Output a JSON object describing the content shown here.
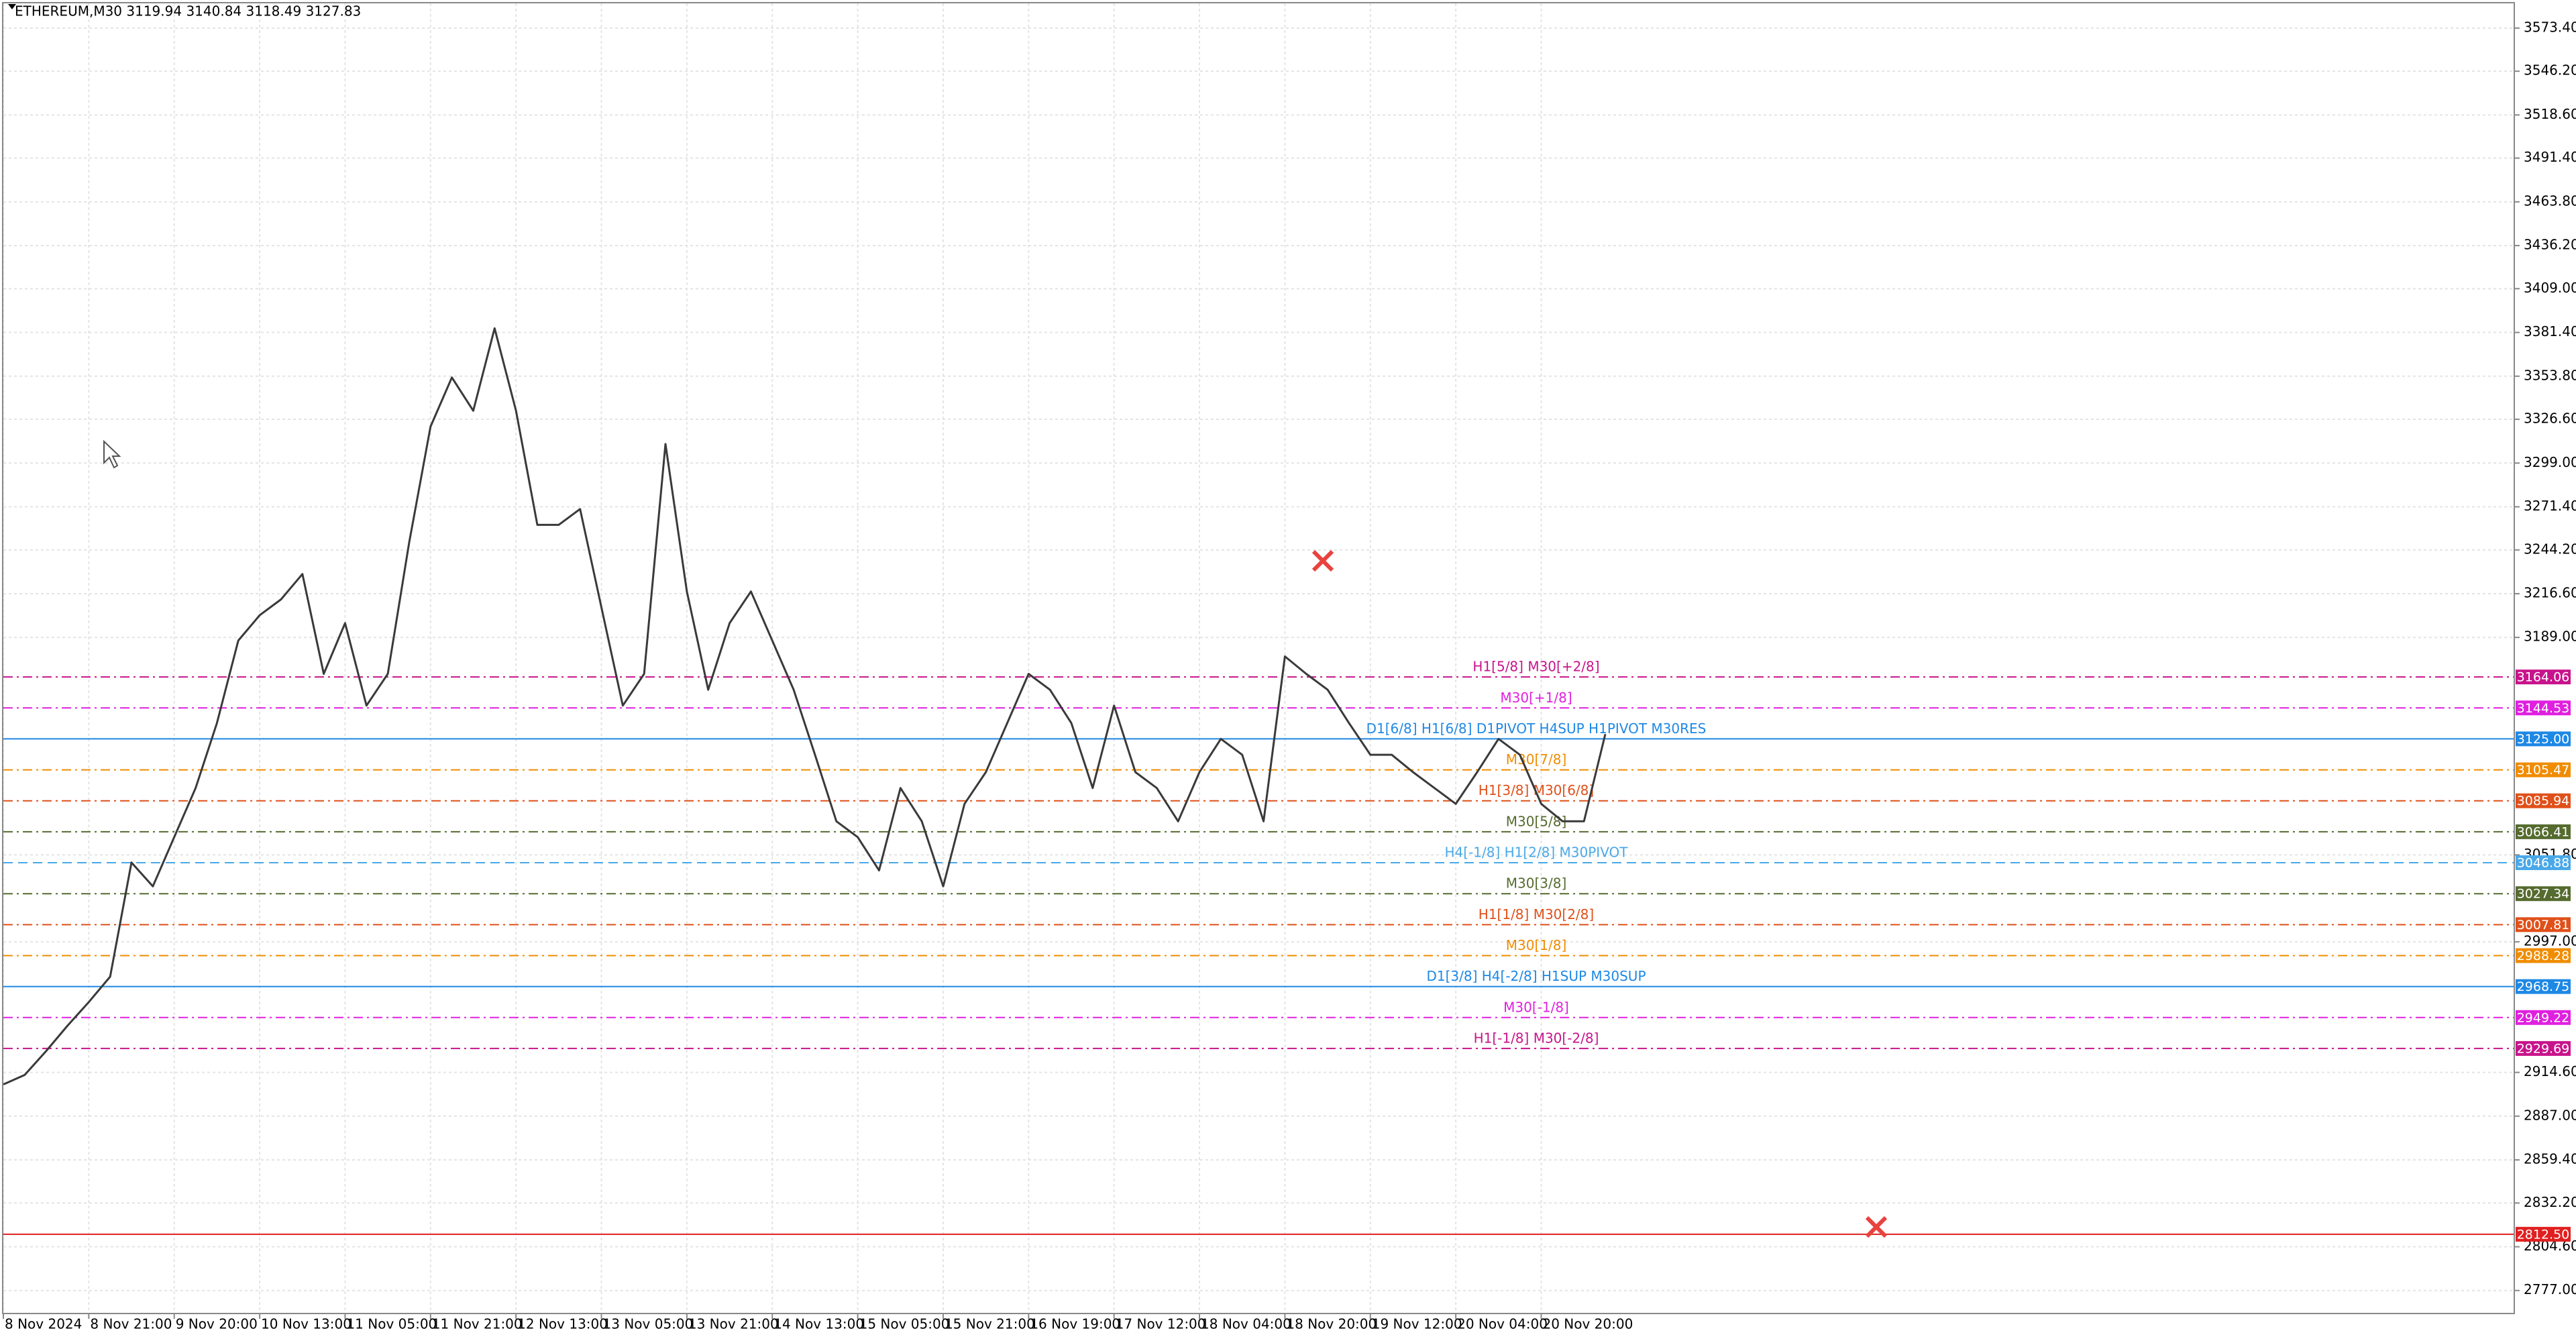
{
  "chart_data": {
    "type": "line",
    "title": "ETHEREUM,M30  3119.94 3140.84 3118.49 3127.83",
    "categories": [
      "8 Nov 2024",
      null,
      null,
      null,
      "8 Nov 21:00",
      null,
      null,
      null,
      "9 Nov 20:00",
      null,
      null,
      null,
      "10 Nov 13:00",
      null,
      null,
      null,
      "11 Nov 05:00",
      null,
      null,
      null,
      "11 Nov 21:00",
      null,
      null,
      null,
      "12 Nov 13:00",
      null,
      null,
      null,
      "13 Nov 05:00",
      null,
      null,
      null,
      "13 Nov 21:00",
      null,
      null,
      null,
      "14 Nov 13:00",
      null,
      null,
      null,
      "15 Nov 05:00",
      null,
      null,
      null,
      "15 Nov 21:00",
      null,
      null,
      null,
      "16 Nov 19:00",
      null,
      null,
      null,
      "17 Nov 12:00",
      null,
      null,
      null,
      "18 Nov 04:00",
      null,
      null,
      null,
      "18 Nov 20:00",
      null,
      null,
      null,
      "19 Nov 12:00",
      null,
      null,
      null,
      "20 Nov 04:00",
      null,
      null,
      null,
      "20 Nov 20:00",
      null,
      null,
      null
    ],
    "series": [
      {
        "name": "ETHEREUM",
        "color": "#3a3a3a",
        "values": [
          2907,
          2913,
          2928,
          2944,
          2959,
          2975,
          3047,
          3032,
          3063,
          3094,
          3135,
          3187,
          3203,
          3213,
          3229,
          3166,
          3198,
          3146,
          3166,
          3249,
          3322,
          3353,
          3332,
          3384,
          3332,
          3260,
          3260,
          3270,
          3208,
          3146,
          3166,
          3311,
          3218,
          3156,
          3198,
          3218,
          3187,
          3156,
          3115,
          3073,
          3063,
          3042,
          3094,
          3073,
          3032,
          3084,
          3104,
          3135,
          3166,
          3156,
          3135,
          3094,
          3146,
          3104,
          3094,
          3073,
          3104,
          3125,
          3115,
          3073,
          3177,
          3166,
          3156,
          3135,
          3115,
          3115,
          3104,
          3094,
          3084,
          3104,
          3125,
          3115,
          3084,
          3073,
          3073,
          3128
        ]
      }
    ],
    "ylim": [
      2762.5,
      3589
    ],
    "yticks": [
      {
        "value": 3573.4,
        "label": "3573.40"
      },
      {
        "value": 3546.2,
        "label": "3546.20"
      },
      {
        "value": 3518.6,
        "label": "3518.60"
      },
      {
        "value": 3491.4,
        "label": "3491.40"
      },
      {
        "value": 3463.8,
        "label": "3463.80"
      },
      {
        "value": 3436.2,
        "label": "3436.20"
      },
      {
        "value": 3409,
        "label": "3409.00"
      },
      {
        "value": 3381.4,
        "label": "3381.40"
      },
      {
        "value": 3353.8,
        "label": "3353.80"
      },
      {
        "value": 3326.6,
        "label": "3326.60"
      },
      {
        "value": 3299,
        "label": "3299.00"
      },
      {
        "value": 3271.4,
        "label": "3271.40"
      },
      {
        "value": 3244.2,
        "label": "3244.20"
      },
      {
        "value": 3216.6,
        "label": "3216.60"
      },
      {
        "value": 3189,
        "label": "3189.00"
      },
      {
        "value": 3051.8,
        "label": "3051.80"
      },
      {
        "value": 2997,
        "label": "2997.00"
      },
      {
        "value": 2914.6,
        "label": "2914.60"
      },
      {
        "value": 2887,
        "label": "2887.00"
      },
      {
        "value": 2859.4,
        "label": "2859.40"
      },
      {
        "value": 2832.2,
        "label": "2832.20"
      },
      {
        "value": 2804.6,
        "label": "2804.60"
      },
      {
        "value": 2777,
        "label": "2777.00"
      }
    ],
    "grid": true,
    "levels": [
      {
        "value": 3164.06,
        "tag": "3164.06",
        "label": "H1[5/8] M30[+2/8]",
        "color": "#c8148c",
        "style": "dashdot"
      },
      {
        "value": 3144.53,
        "tag": "3144.53",
        "label": "M30[+1/8]",
        "color": "#e020e0",
        "style": "dashdot"
      },
      {
        "value": 3125,
        "tag": "3125.00",
        "label": "D1[6/8] H1[6/8] D1PIVOT H4SUP H1PIVOT M30RES",
        "color": "#1e88e5",
        "style": "solid"
      },
      {
        "value": 3105.47,
        "tag": "3105.47",
        "label": "M30[7/8]",
        "color": "#f08c00",
        "style": "dashdot"
      },
      {
        "value": 3085.94,
        "tag": "3085.94",
        "label": "H1[3/8] M30[6/8]",
        "color": "#e0501a",
        "style": "dashdot"
      },
      {
        "value": 3066.41,
        "tag": "3066.41",
        "label": "M30[5/8]",
        "color": "#556b2f",
        "style": "dashdot"
      },
      {
        "value": 3046.88,
        "tag": "3046.88",
        "label": "H4[-1/8] H1[2/8] M30PIVOT",
        "color": "#4aa8e8",
        "style": "dash"
      },
      {
        "value": 3027.34,
        "tag": "3027.34",
        "label": "M30[3/8]",
        "color": "#556b2f",
        "style": "dashdot"
      },
      {
        "value": 3007.81,
        "tag": "3007.81",
        "label": "H1[1/8] M30[2/8]",
        "color": "#e0501a",
        "style": "dashdot"
      },
      {
        "value": 2988.28,
        "tag": "2988.28",
        "label": "M30[1/8]",
        "color": "#f08c00",
        "style": "dashdot"
      },
      {
        "value": 2968.75,
        "tag": "2968.75",
        "label": "D1[3/8] H4[-2/8] H1SUP M30SUP",
        "color": "#1e88e5",
        "style": "solid"
      },
      {
        "value": 2949.22,
        "tag": "2949.22",
        "label": "M30[-1/8]",
        "color": "#e020e0",
        "style": "dashdot"
      },
      {
        "value": 2929.69,
        "tag": "2929.69",
        "label": "H1[-1/8] M30[-2/8]",
        "color": "#c8148c",
        "style": "dashdot"
      },
      {
        "value": 2812.5,
        "tag": "2812.50",
        "label": null,
        "color": "#e02020",
        "style": "solid"
      }
    ]
  }
}
